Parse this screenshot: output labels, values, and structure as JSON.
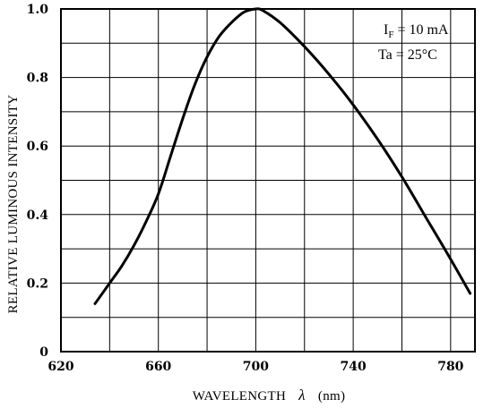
{
  "chart_data": {
    "type": "line",
    "title": "",
    "xlabel": "WAVELENGTH",
    "xlabel_symbol": "λ",
    "xlabel_unit": "(nm)",
    "ylabel": "RELATIVE LUMINOUS INTENSITY",
    "xlim": [
      620,
      790
    ],
    "ylim": [
      0,
      1.0
    ],
    "xticks": [
      620,
      660,
      700,
      740,
      780
    ],
    "xtick_labels": [
      "620",
      "660",
      "700",
      "740",
      "780"
    ],
    "yticks": [
      0,
      0.2,
      0.4,
      0.6,
      0.8,
      1.0
    ],
    "ytick_labels": [
      "0",
      "0.2",
      "0.4",
      "0.6",
      "0.8",
      "1.0"
    ],
    "grid": true,
    "annotations": {
      "line1_main": "I",
      "line1_sub": "F",
      "line1_rest": " = 10 mA",
      "line2": "Ta = 25°C"
    },
    "series": [
      {
        "color": "#000000",
        "x": [
          634,
          640,
          645,
          650,
          655,
          660,
          665,
          670,
          675,
          680,
          685,
          690,
          695,
          700,
          703,
          710,
          720,
          730,
          740,
          750,
          760,
          770,
          780,
          788
        ],
        "y": [
          0.14,
          0.2,
          0.25,
          0.31,
          0.38,
          0.46,
          0.57,
          0.68,
          0.78,
          0.86,
          0.92,
          0.96,
          0.99,
          1.0,
          0.995,
          0.96,
          0.89,
          0.81,
          0.72,
          0.62,
          0.51,
          0.39,
          0.27,
          0.17
        ]
      }
    ]
  }
}
